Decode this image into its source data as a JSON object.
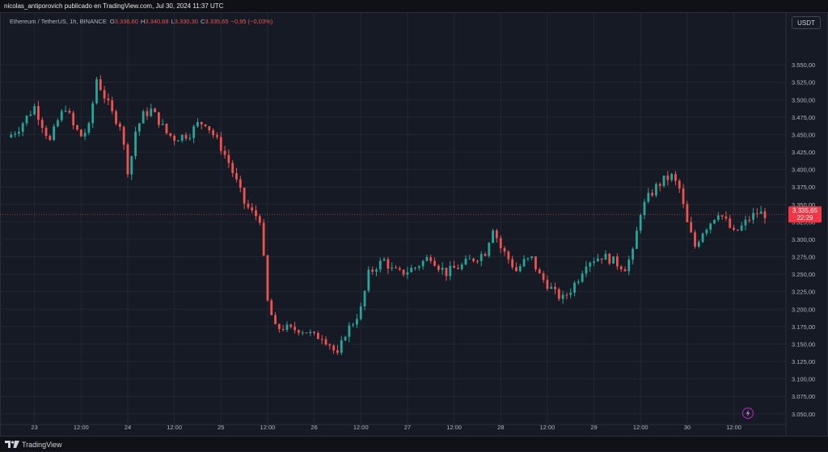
{
  "header": {
    "attribution": "nicolas_antiporovich publicado en TradingView.com, Jul 30, 2024 11:37 UTC"
  },
  "legend": {
    "symbol": "Ethereum / TetherUS, 1h, BINANCE",
    "o_label": "O",
    "o_value": "3.336,60",
    "h_label": "H",
    "h_value": "3.340,68",
    "l_label": "L",
    "l_value": "3.330,30",
    "c_label": "C",
    "c_value": "3.335,65",
    "change": "−0,95 (−0,03%)"
  },
  "currency": "USDT",
  "price_tag": {
    "price": "3.335,65",
    "countdown": "22:29"
  },
  "footer": {
    "brand": "TradingView"
  },
  "colors": {
    "up": "#26a69a",
    "down": "#ef5350",
    "background": "#161a25",
    "grid": "#232733",
    "text": "#b2b5be"
  },
  "chart_data": {
    "type": "candlestick",
    "symbol": "Ethereum / TetherUS",
    "interval": "1h",
    "exchange": "BINANCE",
    "y_range": [
      3037,
      3600
    ],
    "y_ticks": [
      "3.550,00",
      "3.525,00",
      "3.500,00",
      "3.475,00",
      "3.450,00",
      "3.425,00",
      "3.400,00",
      "3.375,00",
      "3.350,00",
      "3.325,00",
      "3.300,00",
      "3.275,00",
      "3.250,00",
      "3.225,00",
      "3.200,00",
      "3.175,00",
      "3.150,00",
      "3.125,00",
      "3.100,00",
      "3.075,00",
      "3.050,00"
    ],
    "y_tick_values": [
      3550,
      3525,
      3500,
      3475,
      3450,
      3425,
      3400,
      3375,
      3350,
      3325,
      3300,
      3275,
      3250,
      3225,
      3200,
      3175,
      3150,
      3125,
      3100,
      3075,
      3050
    ],
    "x_ticks": [
      "23",
      "12:00",
      "24",
      "12:00",
      "25",
      "12:00",
      "26",
      "12:00",
      "27",
      "12:00",
      "28",
      "12:00",
      "29",
      "12:00",
      "30",
      "12:00"
    ],
    "x_tick_hours": [
      0,
      12,
      24,
      36,
      48,
      60,
      72,
      84,
      96,
      108,
      120,
      132,
      144,
      156,
      168,
      180
    ],
    "x_range_hours": [
      -7,
      193
    ],
    "last_price": 3335.65,
    "anchors": [
      [
        -6,
        3450
      ],
      [
        -4,
        3460
      ],
      [
        -2,
        3475
      ],
      [
        0,
        3490
      ],
      [
        2,
        3465
      ],
      [
        4,
        3440
      ],
      [
        6,
        3470
      ],
      [
        8,
        3490
      ],
      [
        10,
        3462
      ],
      [
        12,
        3448
      ],
      [
        14,
        3460
      ],
      [
        16,
        3530
      ],
      [
        18,
        3505
      ],
      [
        20,
        3480
      ],
      [
        22,
        3465
      ],
      [
        24,
        3400
      ],
      [
        25,
        3420
      ],
      [
        26,
        3455
      ],
      [
        28,
        3478
      ],
      [
        30,
        3485
      ],
      [
        32,
        3470
      ],
      [
        34,
        3452
      ],
      [
        36,
        3445
      ],
      [
        38,
        3448
      ],
      [
        40,
        3452
      ],
      [
        42,
        3465
      ],
      [
        44,
        3468
      ],
      [
        46,
        3450
      ],
      [
        48,
        3432
      ],
      [
        50,
        3410
      ],
      [
        52,
        3382
      ],
      [
        54,
        3352
      ],
      [
        56,
        3338
      ],
      [
        58,
        3330
      ],
      [
        60,
        3210
      ],
      [
        62,
        3172
      ],
      [
        64,
        3174
      ],
      [
        66,
        3170
      ],
      [
        68,
        3172
      ],
      [
        70,
        3168
      ],
      [
        72,
        3160
      ],
      [
        74,
        3162
      ],
      [
        76,
        3150
      ],
      [
        78,
        3132
      ],
      [
        80,
        3166
      ],
      [
        82,
        3181
      ],
      [
        84,
        3200
      ],
      [
        86,
        3250
      ],
      [
        88,
        3262
      ],
      [
        90,
        3270
      ],
      [
        92,
        3256
      ],
      [
        94,
        3251
      ],
      [
        96,
        3255
      ],
      [
        98,
        3260
      ],
      [
        100,
        3268
      ],
      [
        102,
        3276
      ],
      [
        104,
        3262
      ],
      [
        106,
        3252
      ],
      [
        108,
        3258
      ],
      [
        110,
        3262
      ],
      [
        112,
        3270
      ],
      [
        114,
        3275
      ],
      [
        116,
        3282
      ],
      [
        118,
        3318
      ],
      [
        120,
        3288
      ],
      [
        122,
        3272
      ],
      [
        124,
        3255
      ],
      [
        126,
        3268
      ],
      [
        128,
        3272
      ],
      [
        130,
        3248
      ],
      [
        132,
        3236
      ],
      [
        134,
        3222
      ],
      [
        136,
        3215
      ],
      [
        138,
        3228
      ],
      [
        140,
        3245
      ],
      [
        142,
        3268
      ],
      [
        144,
        3272
      ],
      [
        146,
        3276
      ],
      [
        148,
        3272
      ],
      [
        150,
        3265
      ],
      [
        152,
        3260
      ],
      [
        154,
        3280
      ],
      [
        156,
        3340
      ],
      [
        158,
        3360
      ],
      [
        160,
        3375
      ],
      [
        162,
        3385
      ],
      [
        164,
        3390
      ],
      [
        166,
        3372
      ],
      [
        168,
        3322
      ],
      [
        170,
        3290
      ],
      [
        172,
        3312
      ],
      [
        174,
        3325
      ],
      [
        176,
        3340
      ],
      [
        178,
        3325
      ],
      [
        180,
        3308
      ],
      [
        182,
        3318
      ],
      [
        184,
        3330
      ],
      [
        186,
        3338
      ],
      [
        188,
        3336
      ]
    ]
  }
}
